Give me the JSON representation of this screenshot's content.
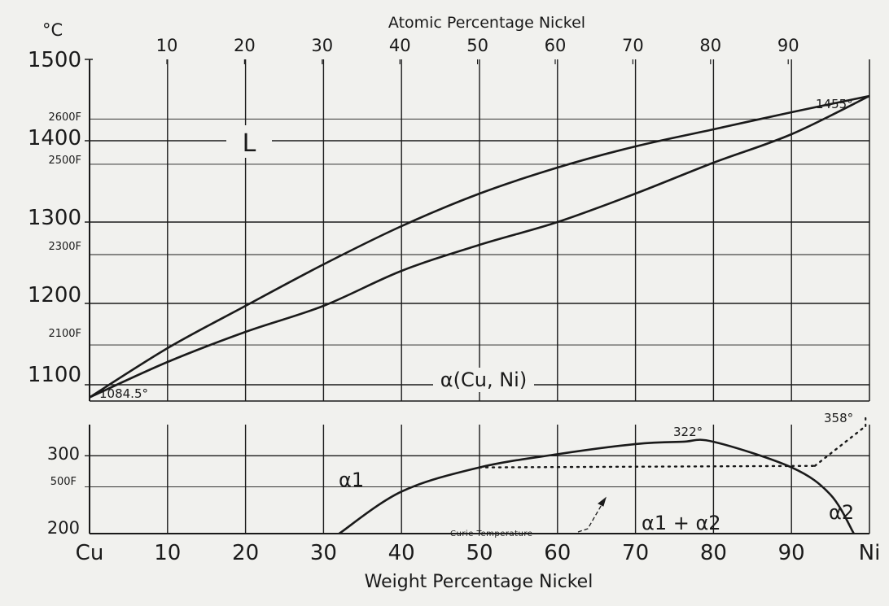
{
  "chart_data": [
    {
      "type": "line",
      "panel": "upper",
      "top_axis_title": "Atomic Percentage Nickel",
      "top_ticks": [
        "10",
        "20",
        "30",
        "40",
        "50",
        "60",
        "70",
        "80",
        "90"
      ],
      "y_unit": "°C",
      "y_ticks_c": [
        1100,
        1200,
        1300,
        1400,
        1500
      ],
      "y_ticks_f": [
        "2100F",
        "2300F",
        "2500F",
        "2600F"
      ],
      "ylim": [
        1080,
        1500
      ],
      "xlim": [
        0,
        100
      ],
      "grid": true,
      "series": [
        {
          "name": "liquidus",
          "x": [
            0,
            10,
            20,
            30,
            40,
            50,
            60,
            70,
            80,
            90,
            100
          ],
          "y": [
            1084.5,
            1145,
            1197,
            1248,
            1295,
            1335,
            1367,
            1393,
            1414,
            1435,
            1455
          ]
        },
        {
          "name": "solidus",
          "x": [
            0,
            10,
            20,
            30,
            40,
            50,
            60,
            70,
            80,
            90,
            100
          ],
          "y": [
            1084.5,
            1128,
            1165,
            1197,
            1240,
            1272,
            1300,
            1335,
            1373,
            1408,
            1455
          ]
        }
      ],
      "annotations": [
        "L",
        "α(Cu, Ni)",
        "1084.5°",
        "1455°"
      ]
    },
    {
      "type": "line",
      "panel": "lower",
      "y_ticks_c": [
        200,
        300
      ],
      "y_ticks_f": [
        "500F"
      ],
      "ylim": [
        195,
        335
      ],
      "xlim": [
        0,
        100
      ],
      "xlabel": "Weight Percentage Nickel",
      "x_ticks": [
        "Cu",
        "10",
        "20",
        "30",
        "40",
        "50",
        "60",
        "70",
        "80",
        "90",
        "Ni"
      ],
      "series": [
        {
          "name": "miscibility gap",
          "x": [
            32,
            40,
            50,
            60,
            70,
            76,
            80,
            90,
            95,
            98
          ],
          "y": [
            200,
            254,
            285,
            302,
            315,
            318,
            318,
            285,
            250,
            200
          ]
        },
        {
          "name": "Curie temperature",
          "x": [
            50,
            60,
            70,
            80,
            90,
            93,
            100
          ],
          "y": [
            285,
            285,
            285,
            285,
            285,
            288,
            358
          ]
        }
      ],
      "annotations": [
        "322°",
        "358°",
        "α1",
        "α1 + α2",
        "α2",
        "Curie Temperature"
      ]
    }
  ]
}
